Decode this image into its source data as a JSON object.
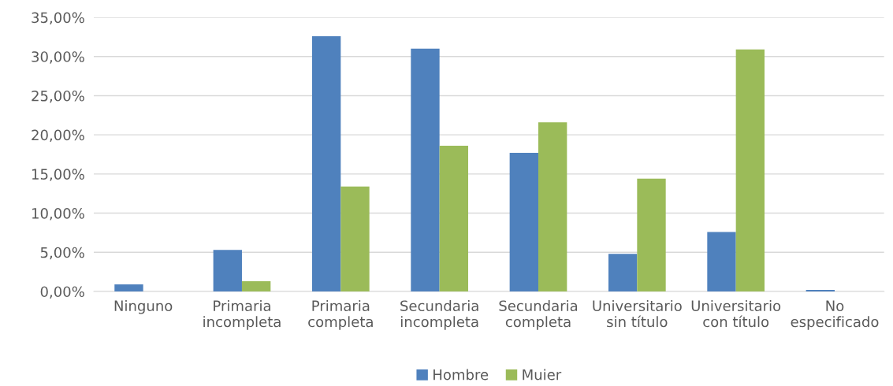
{
  "chart_data": {
    "type": "bar",
    "categories": [
      "Ninguno",
      "Primaria\nincompleta",
      "Primaria\ncompleta",
      "Secundaria\nincompleta",
      "Secundaria\ncompleta",
      "Universitario\nsin título",
      "Universitario\ncon título",
      "No\nespecificado"
    ],
    "series": [
      {
        "name": "Hombre",
        "color": "#4f81bd",
        "values": [
          0.9,
          5.3,
          32.6,
          31.0,
          17.7,
          4.8,
          7.6,
          0.2
        ]
      },
      {
        "name": "Muier",
        "color": "#9bbb59",
        "values": [
          0,
          1.3,
          13.4,
          18.6,
          21.6,
          14.4,
          30.9,
          0
        ]
      }
    ],
    "ylim": [
      0,
      35
    ],
    "yticks": [
      {
        "value": 0,
        "label": "0,00%"
      },
      {
        "value": 5,
        "label": "5,00%"
      },
      {
        "value": 10,
        "label": "10,00%"
      },
      {
        "value": 15,
        "label": "15,00%"
      },
      {
        "value": 20,
        "label": "20,00%"
      },
      {
        "value": 25,
        "label": "25,00%"
      },
      {
        "value": 30,
        "label": "30,00%"
      },
      {
        "value": 35,
        "label": "35,00%"
      }
    ],
    "grid": "y",
    "legend": "bottom"
  }
}
